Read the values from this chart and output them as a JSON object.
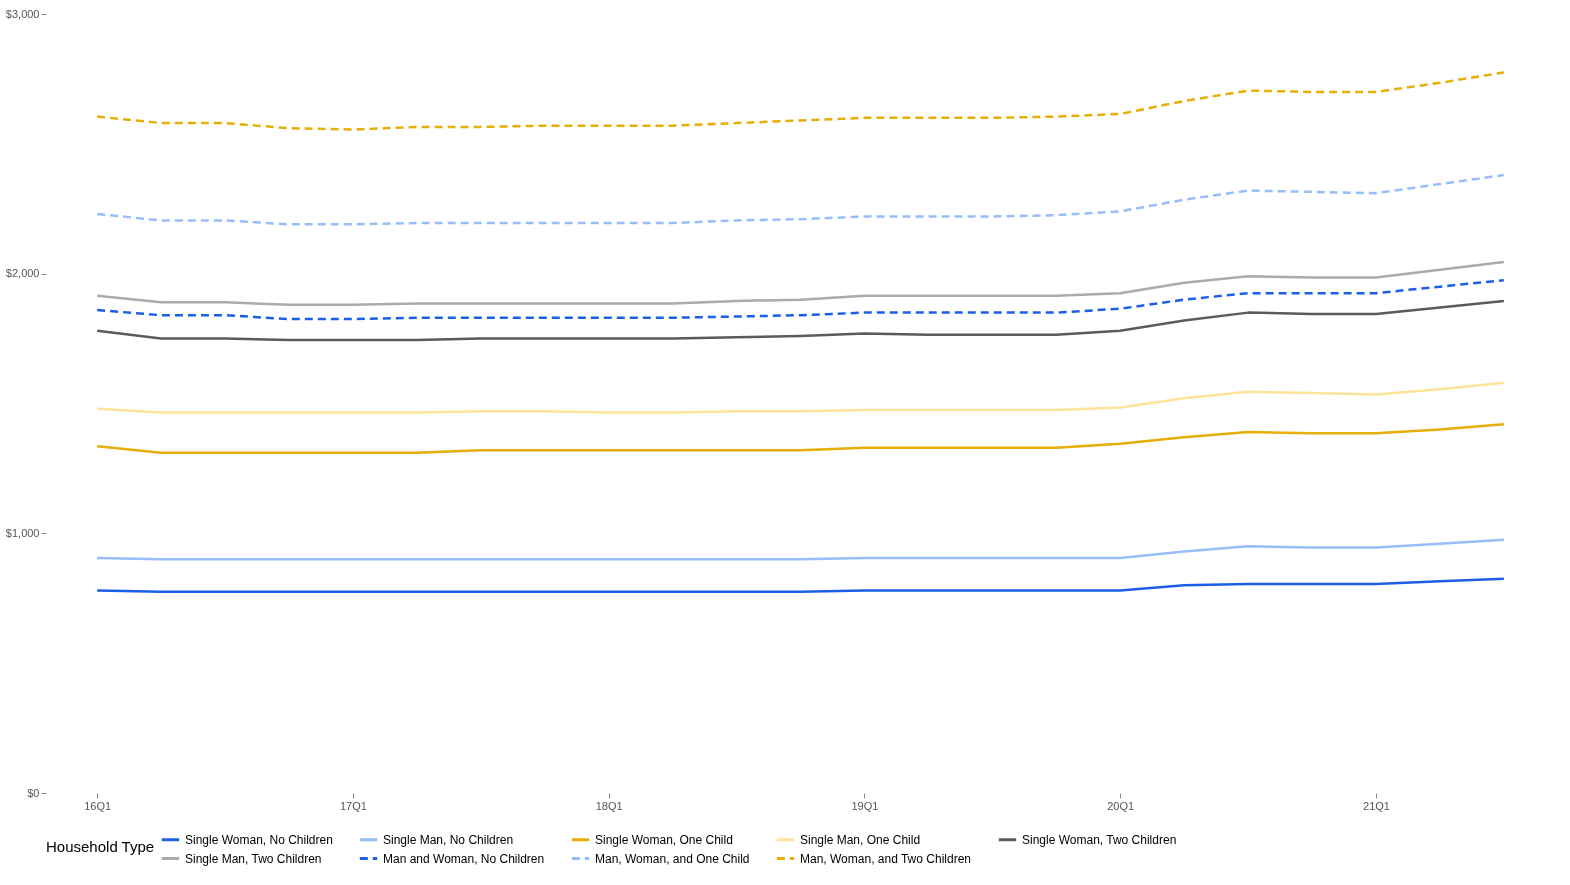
{
  "chart_data": {
    "type": "line",
    "categories": [
      "16Q1",
      null,
      null,
      null,
      "17Q1",
      null,
      null,
      null,
      "18Q1",
      null,
      null,
      null,
      "19Q1",
      null,
      null,
      null,
      "20Q1",
      null,
      null,
      null,
      "21Q1",
      null,
      null
    ],
    "ylim": [
      0,
      3000
    ],
    "yticks": [
      {
        "value": 0,
        "label": "$0"
      },
      {
        "value": 1000,
        "label": "$1,000"
      },
      {
        "value": 2000,
        "label": "$2,000"
      },
      {
        "value": 3000,
        "label": "$3,000"
      }
    ],
    "legend_title": "Household Type",
    "legend": "bottom",
    "grid": false,
    "series": [
      {
        "name": "Single Woman, No Children",
        "color": "#1a5fe6",
        "line_style": "solid",
        "values": [
          780,
          775,
          775,
          775,
          775,
          775,
          775,
          775,
          775,
          775,
          775,
          775,
          780,
          780,
          780,
          780,
          780,
          800,
          805,
          805,
          805,
          815,
          825
        ]
      },
      {
        "name": "Single Man, No Children",
        "color": "#97bdfb",
        "line_style": "solid",
        "values": [
          905,
          900,
          900,
          900,
          900,
          900,
          900,
          900,
          900,
          900,
          900,
          900,
          905,
          905,
          905,
          905,
          905,
          930,
          950,
          945,
          945,
          960,
          975
        ]
      },
      {
        "name": "Single Woman, One Child",
        "color": "#e6ae06",
        "line_style": "solid",
        "values": [
          1335,
          1310,
          1310,
          1310,
          1310,
          1310,
          1320,
          1320,
          1320,
          1320,
          1320,
          1320,
          1330,
          1330,
          1330,
          1330,
          1345,
          1370,
          1390,
          1385,
          1385,
          1400,
          1420
        ]
      },
      {
        "name": "Single Man, One Child",
        "color": "#fde49a",
        "line_style": "solid",
        "values": [
          1480,
          1465,
          1465,
          1465,
          1465,
          1465,
          1470,
          1470,
          1465,
          1465,
          1470,
          1470,
          1475,
          1475,
          1475,
          1475,
          1485,
          1520,
          1545,
          1540,
          1535,
          1555,
          1580
        ]
      },
      {
        "name": "Single Woman, Two Children",
        "color": "#5b5b5b",
        "line_style": "solid",
        "values": [
          1780,
          1750,
          1750,
          1745,
          1745,
          1745,
          1750,
          1750,
          1750,
          1750,
          1755,
          1760,
          1770,
          1765,
          1765,
          1765,
          1780,
          1820,
          1850,
          1845,
          1845,
          1870,
          1895
        ]
      },
      {
        "name": "Single Man, Two Children",
        "color": "#ababab",
        "line_style": "solid",
        "values": [
          1915,
          1890,
          1890,
          1880,
          1880,
          1885,
          1885,
          1885,
          1885,
          1885,
          1895,
          1900,
          1915,
          1915,
          1915,
          1915,
          1925,
          1965,
          1990,
          1985,
          1985,
          2015,
          2045
        ]
      },
      {
        "name": "Man and Woman, No Children",
        "color": "#1a5fe6",
        "line_style": "dashed",
        "values": [
          1860,
          1840,
          1840,
          1825,
          1825,
          1830,
          1830,
          1830,
          1830,
          1830,
          1835,
          1840,
          1850,
          1850,
          1850,
          1850,
          1865,
          1900,
          1925,
          1925,
          1925,
          1950,
          1975
        ]
      },
      {
        "name": "Man, Woman, and One Child",
        "color": "#97bdfb",
        "line_style": "dashed",
        "values": [
          2230,
          2205,
          2205,
          2190,
          2190,
          2195,
          2195,
          2195,
          2195,
          2195,
          2205,
          2210,
          2220,
          2220,
          2220,
          2225,
          2240,
          2285,
          2320,
          2315,
          2310,
          2345,
          2380
        ]
      },
      {
        "name": "Man, Woman, and Two Children",
        "color": "#e6ae06",
        "line_style": "dashed",
        "values": [
          2605,
          2580,
          2580,
          2560,
          2555,
          2565,
          2565,
          2570,
          2570,
          2570,
          2580,
          2590,
          2600,
          2600,
          2600,
          2605,
          2615,
          2665,
          2705,
          2700,
          2700,
          2735,
          2775
        ]
      }
    ]
  }
}
